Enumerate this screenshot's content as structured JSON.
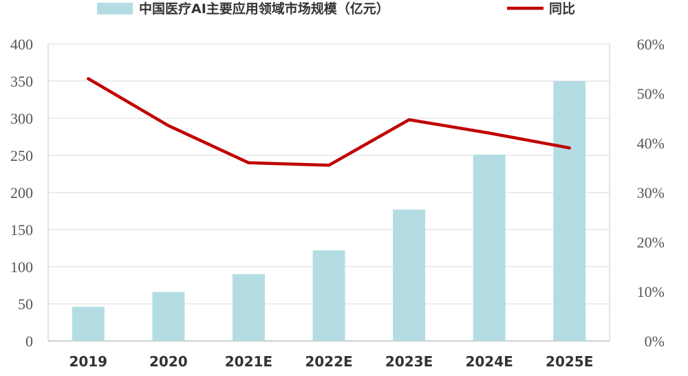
{
  "chart_data": {
    "type": "bar",
    "categories": [
      "2019",
      "2020",
      "2021E",
      "2022E",
      "2023E",
      "2024E",
      "2025E"
    ],
    "series": [
      {
        "name": "中国医疗AI主要应用领域市场规模（亿元）",
        "type": "bar",
        "axis": "left",
        "color": "#b3dde3",
        "values": [
          46,
          66,
          90,
          122,
          177,
          251,
          350
        ]
      },
      {
        "name": "同比",
        "type": "line",
        "axis": "right",
        "color": "#c00000",
        "unit": "%",
        "values": [
          53,
          43.5,
          36,
          35.5,
          44.7,
          42,
          39
        ]
      }
    ],
    "yAxisLeft": {
      "min": 0,
      "max": 400,
      "ticks": [
        "0",
        "50",
        "100",
        "150",
        "200",
        "250",
        "300",
        "350",
        "400"
      ]
    },
    "yAxisRight": {
      "min": 0,
      "max": 60,
      "ticks": [
        "0%",
        "10%",
        "20%",
        "30%",
        "40%",
        "50%",
        "60%"
      ]
    },
    "grid": "horizontal",
    "legend": "top"
  }
}
